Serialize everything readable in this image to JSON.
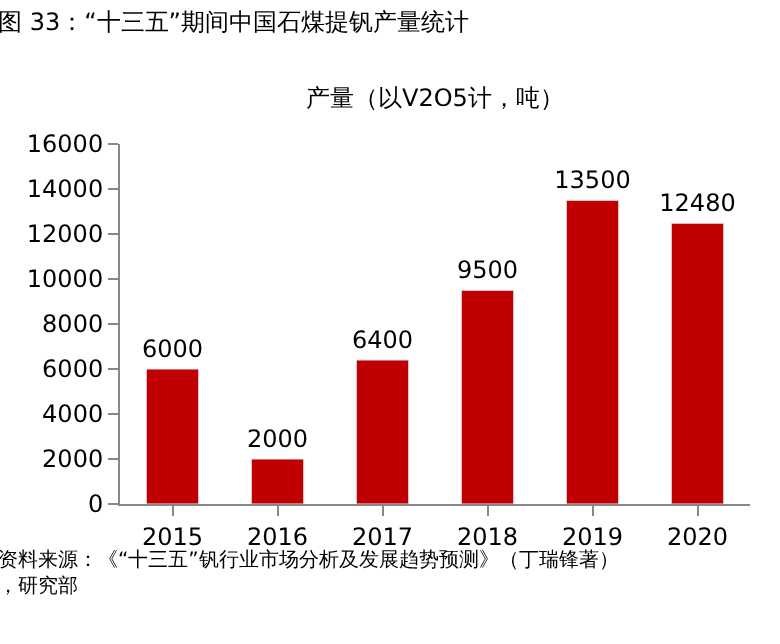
{
  "chart_data": {
    "type": "bar",
    "title": "图 33：“十三五”期间中国石煤提钒产量统计",
    "subtitle": "产量（以V2O5计，吨）",
    "categories": [
      "2015",
      "2016",
      "2017",
      "2018",
      "2019",
      "2020"
    ],
    "values": [
      6000,
      2000,
      6400,
      9500,
      13500,
      12480
    ],
    "color": "#c00000",
    "ylim": [
      0,
      16000
    ],
    "yticks": [
      0,
      2000,
      4000,
      6000,
      8000,
      10000,
      12000,
      14000,
      16000
    ],
    "data_labels": true,
    "annotations": [
      "资料来源：《“十三五”钒行业市场分析及发展趋势预测》（丁瑞锋著），研究部"
    ]
  }
}
